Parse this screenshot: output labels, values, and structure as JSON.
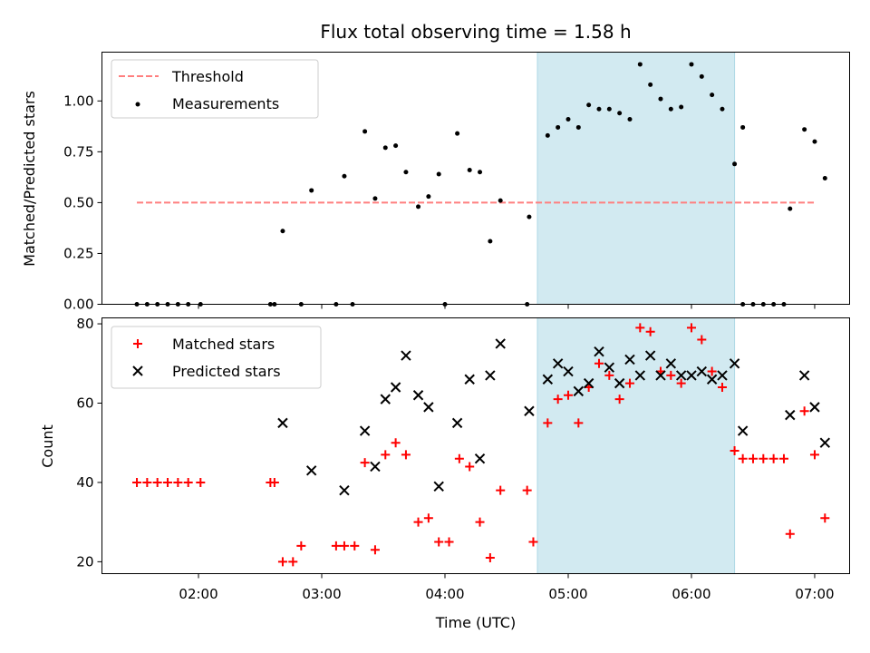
{
  "chart_data": [
    {
      "type": "scatter",
      "title": "Flux total observing time = 1.58 h",
      "ylabel": "Matched/Predicted stars",
      "xlabel": "",
      "xlim": [
        "01:13",
        "07:17"
      ],
      "ylim": [
        0,
        1.24
      ],
      "yticks": [
        0.0,
        0.25,
        0.5,
        0.75,
        1.0
      ],
      "ytick_labels": [
        "0.00",
        "0.25",
        "0.50",
        "0.75",
        "1.00"
      ],
      "highlight_span": [
        "04:45",
        "06:21"
      ],
      "highlight_color": "#add8e6",
      "legend_position": "upper-left",
      "threshold": {
        "name": "Threshold",
        "value": 0.5,
        "x_range": [
          "01:30",
          "07:00"
        ],
        "color": "#ff7f7f",
        "style": "dashed"
      },
      "series": [
        {
          "name": "Measurements",
          "marker": "dot",
          "color": "#000000",
          "points": [
            [
              "01:30",
              0
            ],
            [
              "01:35",
              0
            ],
            [
              "01:40",
              0
            ],
            [
              "01:45",
              0
            ],
            [
              "01:50",
              0
            ],
            [
              "01:55",
              0
            ],
            [
              "02:01",
              0
            ],
            [
              "02:35",
              0
            ],
            [
              "02:37",
              0
            ],
            [
              "02:41",
              0.36
            ],
            [
              "02:50",
              0
            ],
            [
              "02:55",
              0.56
            ],
            [
              "03:07",
              0
            ],
            [
              "03:11",
              0.63
            ],
            [
              "03:15",
              0
            ],
            [
              "03:21",
              0.85
            ],
            [
              "03:26",
              0.52
            ],
            [
              "03:31",
              0.77
            ],
            [
              "03:36",
              0.78
            ],
            [
              "03:41",
              0.65
            ],
            [
              "03:47",
              0.48
            ],
            [
              "03:52",
              0.53
            ],
            [
              "03:57",
              0.64
            ],
            [
              "04:00",
              0
            ],
            [
              "04:06",
              0.84
            ],
            [
              "04:12",
              0.66
            ],
            [
              "04:17",
              0.65
            ],
            [
              "04:22",
              0.31
            ],
            [
              "04:27",
              0.51
            ],
            [
              "04:40",
              0
            ],
            [
              "04:41",
              0.43
            ],
            [
              "04:50",
              0.83
            ],
            [
              "04:55",
              0.87
            ],
            [
              "05:00",
              0.91
            ],
            [
              "05:05",
              0.87
            ],
            [
              "05:10",
              0.98
            ],
            [
              "05:15",
              0.96
            ],
            [
              "05:20",
              0.96
            ],
            [
              "05:25",
              0.94
            ],
            [
              "05:30",
              0.91
            ],
            [
              "05:35",
              1.18
            ],
            [
              "05:40",
              1.08
            ],
            [
              "05:45",
              1.01
            ],
            [
              "05:50",
              0.96
            ],
            [
              "05:55",
              0.97
            ],
            [
              "06:00",
              1.18
            ],
            [
              "06:05",
              1.12
            ],
            [
              "06:10",
              1.03
            ],
            [
              "06:15",
              0.96
            ],
            [
              "06:21",
              0.69
            ],
            [
              "06:25",
              0.87
            ],
            [
              "06:25",
              0
            ],
            [
              "06:30",
              0
            ],
            [
              "06:35",
              0
            ],
            [
              "06:40",
              0
            ],
            [
              "06:45",
              0
            ],
            [
              "06:48",
              0.47
            ],
            [
              "06:55",
              0.86
            ],
            [
              "07:00",
              0.8
            ],
            [
              "07:05",
              0.62
            ]
          ]
        }
      ]
    },
    {
      "type": "scatter",
      "title": "",
      "xlabel": "Time (UTC)",
      "ylabel": "Count",
      "xlim": [
        "01:13",
        "07:17"
      ],
      "ylim": [
        17,
        81.5
      ],
      "yticks": [
        20,
        40,
        60,
        80
      ],
      "xticks": [
        "02:00",
        "03:00",
        "04:00",
        "05:00",
        "06:00",
        "07:00"
      ],
      "highlight_span": [
        "04:45",
        "06:21"
      ],
      "highlight_color": "#add8e6",
      "legend_position": "upper-left",
      "series": [
        {
          "name": "Matched stars",
          "marker": "plus",
          "color": "#ff0000",
          "points": [
            [
              "01:30",
              40
            ],
            [
              "01:35",
              40
            ],
            [
              "01:40",
              40
            ],
            [
              "01:45",
              40
            ],
            [
              "01:50",
              40
            ],
            [
              "01:55",
              40
            ],
            [
              "02:01",
              40
            ],
            [
              "02:35",
              40
            ],
            [
              "02:37",
              40
            ],
            [
              "02:41",
              20
            ],
            [
              "02:46",
              20
            ],
            [
              "02:50",
              24
            ],
            [
              "03:07",
              24
            ],
            [
              "03:11",
              24
            ],
            [
              "03:16",
              24
            ],
            [
              "03:21",
              45
            ],
            [
              "03:26",
              23
            ],
            [
              "03:31",
              47
            ],
            [
              "03:36",
              50
            ],
            [
              "03:41",
              47
            ],
            [
              "03:47",
              30
            ],
            [
              "03:52",
              31
            ],
            [
              "03:57",
              25
            ],
            [
              "04:02",
              25
            ],
            [
              "04:07",
              46
            ],
            [
              "04:12",
              44
            ],
            [
              "04:17",
              30
            ],
            [
              "04:22",
              21
            ],
            [
              "04:27",
              38
            ],
            [
              "04:40",
              38
            ],
            [
              "04:43",
              25
            ],
            [
              "04:50",
              55
            ],
            [
              "04:55",
              61
            ],
            [
              "05:00",
              62
            ],
            [
              "05:05",
              55
            ],
            [
              "05:10",
              64
            ],
            [
              "05:15",
              70
            ],
            [
              "05:20",
              67
            ],
            [
              "05:25",
              61
            ],
            [
              "05:30",
              65
            ],
            [
              "05:35",
              79
            ],
            [
              "05:40",
              78
            ],
            [
              "05:45",
              68
            ],
            [
              "05:50",
              67
            ],
            [
              "05:55",
              65
            ],
            [
              "06:00",
              79
            ],
            [
              "06:05",
              76
            ],
            [
              "06:10",
              68
            ],
            [
              "06:15",
              64
            ],
            [
              "06:21",
              48
            ],
            [
              "06:25",
              46
            ],
            [
              "06:30",
              46
            ],
            [
              "06:35",
              46
            ],
            [
              "06:40",
              46
            ],
            [
              "06:45",
              46
            ],
            [
              "06:48",
              27
            ],
            [
              "06:55",
              58
            ],
            [
              "07:00",
              47
            ],
            [
              "07:05",
              31
            ]
          ]
        },
        {
          "name": "Predicted stars",
          "marker": "x",
          "color": "#000000",
          "points": [
            [
              "02:41",
              55
            ],
            [
              "02:55",
              43
            ],
            [
              "03:11",
              38
            ],
            [
              "03:21",
              53
            ],
            [
              "03:26",
              44
            ],
            [
              "03:31",
              61
            ],
            [
              "03:36",
              64
            ],
            [
              "03:41",
              72
            ],
            [
              "03:47",
              62
            ],
            [
              "03:52",
              59
            ],
            [
              "03:57",
              39
            ],
            [
              "04:06",
              55
            ],
            [
              "04:12",
              66
            ],
            [
              "04:17",
              46
            ],
            [
              "04:22",
              67
            ],
            [
              "04:27",
              75
            ],
            [
              "04:41",
              58
            ],
            [
              "04:50",
              66
            ],
            [
              "04:55",
              70
            ],
            [
              "05:00",
              68
            ],
            [
              "05:05",
              63
            ],
            [
              "05:10",
              65
            ],
            [
              "05:15",
              73
            ],
            [
              "05:20",
              69
            ],
            [
              "05:25",
              65
            ],
            [
              "05:30",
              71
            ],
            [
              "05:35",
              67
            ],
            [
              "05:40",
              72
            ],
            [
              "05:45",
              67
            ],
            [
              "05:50",
              70
            ],
            [
              "05:55",
              67
            ],
            [
              "06:00",
              67
            ],
            [
              "06:05",
              68
            ],
            [
              "06:10",
              66
            ],
            [
              "06:15",
              67
            ],
            [
              "06:21",
              70
            ],
            [
              "06:25",
              53
            ],
            [
              "06:48",
              57
            ],
            [
              "06:55",
              67
            ],
            [
              "07:00",
              59
            ],
            [
              "07:05",
              50
            ]
          ]
        }
      ]
    }
  ]
}
